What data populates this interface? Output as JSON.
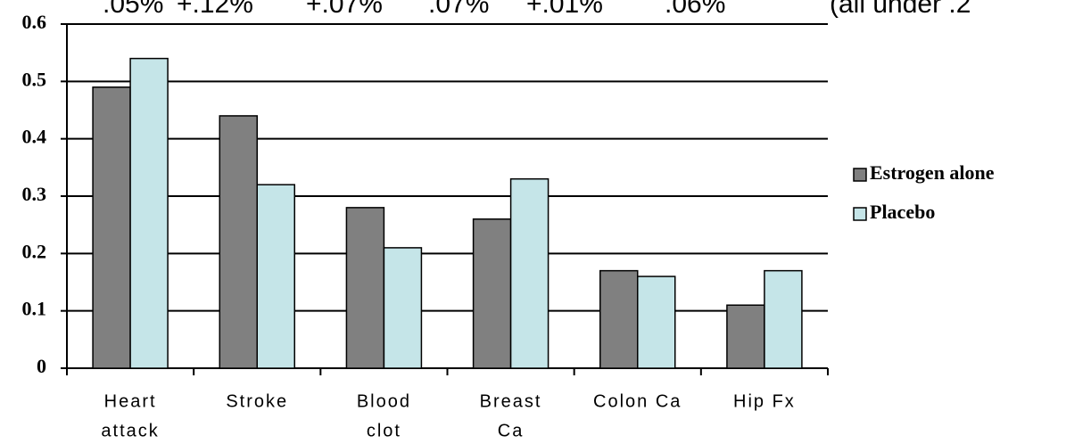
{
  "chart_data": {
    "type": "bar",
    "annotations": [
      ".05%",
      "+.12%",
      "+.07%",
      ".07%",
      "+.01%",
      ".06%",
      "(all under .2"
    ],
    "categories": [
      [
        "Heart",
        "attack"
      ],
      [
        "Stroke"
      ],
      [
        "Blood",
        "clot"
      ],
      [
        "Breast",
        "Ca"
      ],
      [
        "Colon  Ca"
      ],
      [
        "Hip  Fx"
      ]
    ],
    "series": [
      {
        "name": "Estrogen alone",
        "color": "#808080",
        "values": [
          0.49,
          0.44,
          0.28,
          0.26,
          0.17,
          0.11
        ]
      },
      {
        "name": "Placebo",
        "color": "#c5e5e8",
        "values": [
          0.54,
          0.32,
          0.21,
          0.33,
          0.16,
          0.17
        ]
      }
    ],
    "ylim": [
      0,
      0.6
    ],
    "yticks": [
      0,
      0.1,
      0.2,
      0.3,
      0.4,
      0.5,
      0.6
    ],
    "grid": true,
    "legend": "right"
  }
}
